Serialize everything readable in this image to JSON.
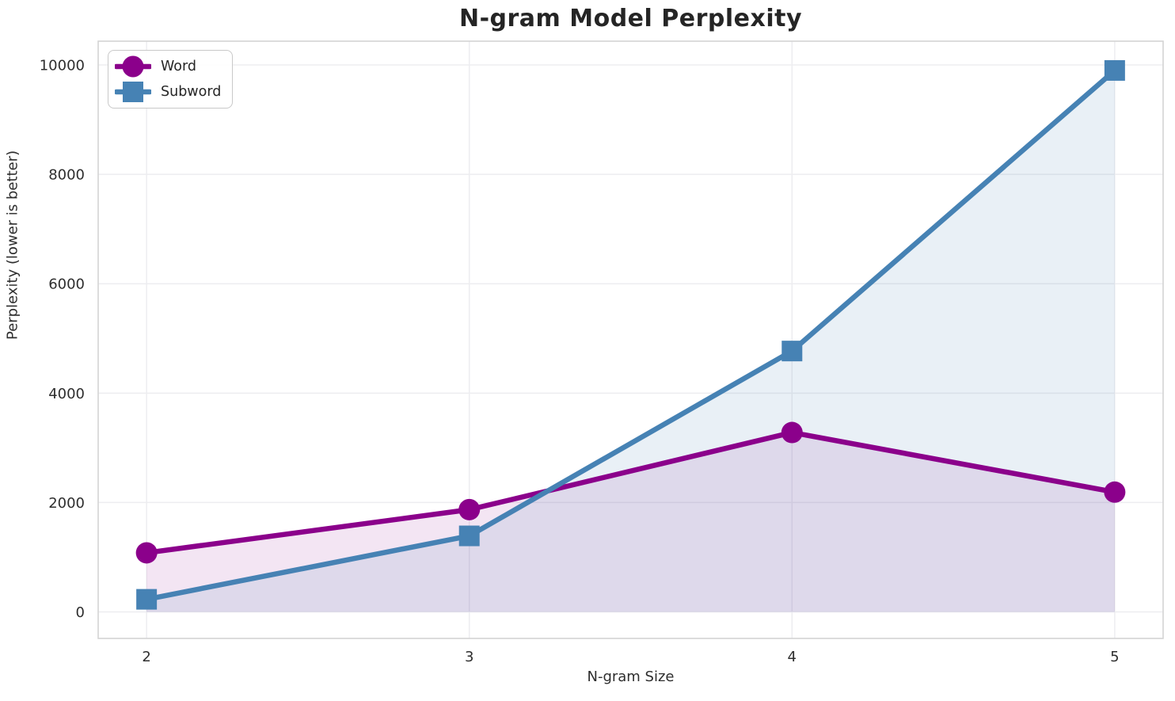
{
  "chart_data": {
    "type": "line",
    "title": "N-gram Model Perplexity",
    "xlabel": "N-gram Size",
    "ylabel": "Perplexity (lower is better)",
    "x": [
      2,
      3,
      4,
      5
    ],
    "xtick_labels": [
      "2",
      "3",
      "4",
      "5"
    ],
    "yticks": [
      0,
      2000,
      4000,
      6000,
      8000,
      10000
    ],
    "ytick_labels": [
      "0",
      "2000",
      "4000",
      "6000",
      "8000",
      "10000"
    ],
    "xlim": [
      1.85,
      5.15
    ],
    "ylim": [
      -485,
      10435
    ],
    "grid": true,
    "legend_position": "upper left",
    "series": [
      {
        "name": "Word",
        "color": "#8B008B",
        "marker": "circle",
        "fill_opacity": 0.1,
        "values": [
          1080,
          1870,
          3280,
          2190
        ]
      },
      {
        "name": "Subword",
        "color": "#4682B4",
        "marker": "square",
        "fill_opacity": 0.12,
        "values": [
          230,
          1390,
          4770,
          9900
        ]
      }
    ]
  },
  "colors": {
    "grid": "#ededf0",
    "spine": "#d4d4d4",
    "tick_text": "#2e2e2e",
    "plot_background": "#ffffff"
  }
}
